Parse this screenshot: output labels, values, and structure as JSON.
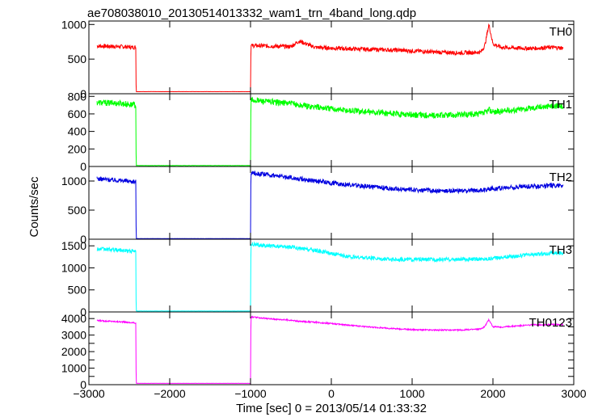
{
  "chart_data": {
    "type": "line",
    "title": "ae708038010_20130514013332_wam1_trn_4band_long.qdp",
    "xlabel": "Time [sec] 0 = 2013/05/14 01:33:32",
    "ylabel": "Counts/sec",
    "xlim": [
      -3000,
      3000
    ],
    "xticks": [
      -3000,
      -2000,
      -1000,
      0,
      1000,
      2000,
      3000
    ],
    "xtick_labels": [
      "−3000",
      "−2000",
      "−1000",
      "0",
      "1000",
      "2000",
      "3000"
    ],
    "grid": false,
    "x": [
      -2900,
      -2600,
      -2420,
      -2415,
      -1000,
      -995,
      -800,
      -500,
      -400,
      -200,
      0,
      200,
      500,
      800,
      1000,
      1300,
      1600,
      1850,
      1900,
      1950,
      2000,
      2100,
      2300,
      2500,
      2700,
      2870
    ],
    "panels": [
      {
        "name": "TH0",
        "color": "#ff0000",
        "ylim": [
          0,
          1050
        ],
        "yticks": [
          0,
          500,
          1000
        ],
        "y": [
          690,
          680,
          670,
          30,
          30,
          695,
          690,
          680,
          760,
          670,
          660,
          650,
          640,
          630,
          620,
          600,
          590,
          600,
          700,
          1000,
          720,
          670,
          660,
          655,
          670,
          660
        ],
        "noise": 30
      },
      {
        "name": "TH1",
        "color": "#00ff00",
        "ylim": [
          0,
          830
        ],
        "yticks": [
          0,
          200,
          400,
          600,
          800
        ],
        "y": [
          730,
          720,
          700,
          10,
          10,
          760,
          740,
          720,
          700,
          680,
          660,
          640,
          620,
          600,
          590,
          580,
          590,
          600,
          610,
          650,
          620,
          630,
          650,
          670,
          690,
          690
        ],
        "noise": 35
      },
      {
        "name": "TH2",
        "color": "#0000e0",
        "ylim": [
          0,
          1250
        ],
        "yticks": [
          0,
          500,
          1000
        ],
        "y": [
          1040,
          1010,
          990,
          10,
          10,
          1140,
          1110,
          1060,
          1040,
          1000,
          970,
          940,
          900,
          870,
          850,
          830,
          830,
          840,
          850,
          870,
          870,
          880,
          900,
          910,
          920,
          930
        ],
        "noise": 40
      },
      {
        "name": "TH3",
        "color": "#00ffff",
        "ylim": [
          0,
          1650
        ],
        "yticks": [
          0,
          500,
          1000,
          1500
        ],
        "y": [
          1430,
          1400,
          1370,
          20,
          20,
          1540,
          1500,
          1470,
          1440,
          1400,
          1330,
          1250,
          1220,
          1190,
          1190,
          1190,
          1190,
          1200,
          1200,
          1210,
          1220,
          1240,
          1270,
          1300,
          1330,
          1340
        ],
        "noise": 45
      },
      {
        "name": "TH0123",
        "color": "#ff00ff",
        "ylim": [
          0,
          4400
        ],
        "yticks": [
          0,
          500,
          1000,
          1500,
          2000,
          2500,
          3000,
          3500,
          4000
        ],
        "ytick_labels": [
          "0",
          "",
          "1000",
          "",
          "2000",
          "",
          "3000",
          "",
          "4000"
        ],
        "y": [
          3880,
          3800,
          3730,
          80,
          80,
          4100,
          4000,
          3900,
          3830,
          3780,
          3700,
          3600,
          3480,
          3380,
          3330,
          3300,
          3300,
          3370,
          3530,
          3940,
          3500,
          3480,
          3560,
          3620,
          3640,
          3640
        ],
        "noise": 40
      }
    ]
  }
}
